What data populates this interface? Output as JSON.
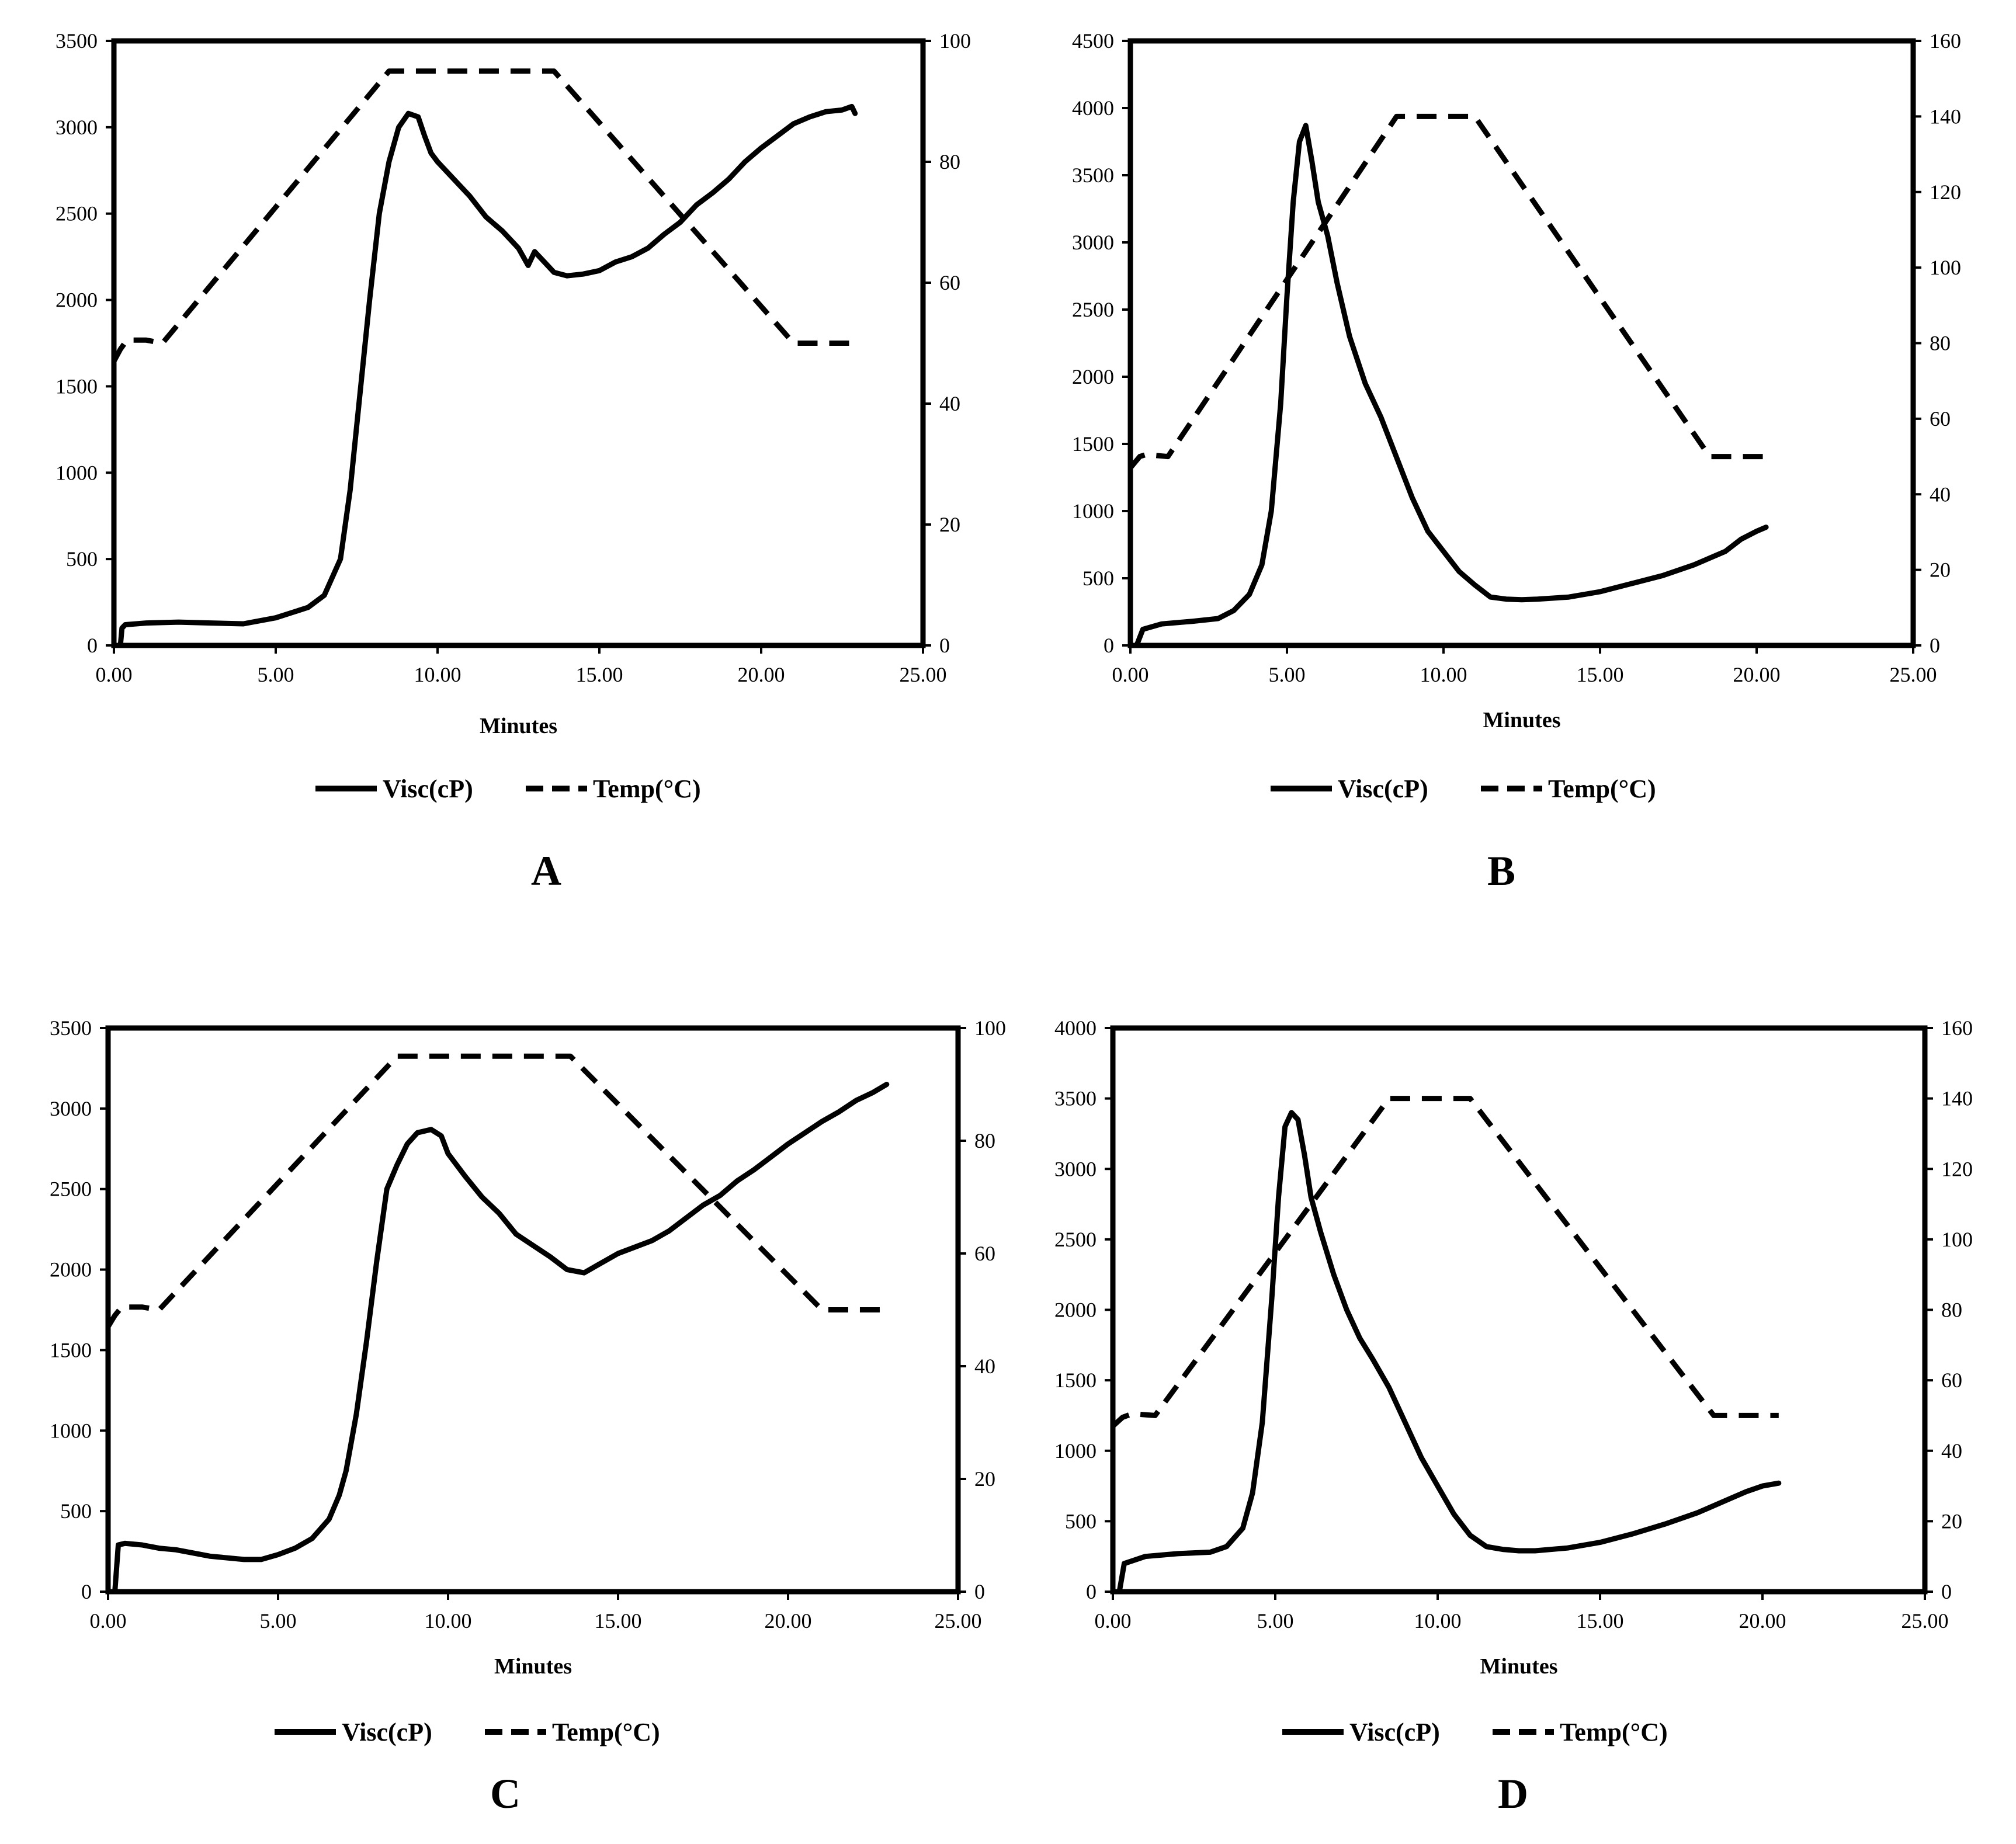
{
  "figure": {
    "colors": {
      "line": "#000000",
      "background": "#ffffff"
    }
  },
  "chart_data": [
    {
      "panel": "A",
      "type": "line",
      "xlabel": "Minutes",
      "xlim": [
        0,
        25
      ],
      "xticks": [
        "0.00",
        "5.00",
        "10.00",
        "15.00",
        "20.00",
        "25.00"
      ],
      "ylim_left": [
        0,
        3500
      ],
      "yticks_left": [
        "0",
        "500",
        "1000",
        "1500",
        "2000",
        "2500",
        "3000",
        "3500"
      ],
      "ylim_right": [
        0,
        100
      ],
      "yticks_right": [
        "0",
        "20",
        "40",
        "60",
        "80",
        "100"
      ],
      "legend": [
        "Visc(cP)",
        "Temp(°C)"
      ],
      "series": [
        {
          "name": "Visc(cP)",
          "axis": "left",
          "style": "solid",
          "x": [
            0.0,
            0.2,
            0.25,
            0.35,
            1.0,
            2.0,
            3.0,
            4.0,
            5.0,
            6.0,
            6.5,
            7.0,
            7.3,
            7.6,
            7.9,
            8.2,
            8.5,
            8.8,
            9.1,
            9.4,
            9.6,
            9.8,
            10.0,
            10.5,
            11.0,
            11.5,
            12.0,
            12.5,
            12.8,
            13.0,
            13.3,
            13.6,
            14.0,
            14.5,
            15.0,
            15.5,
            16.0,
            16.5,
            17.0,
            17.5,
            18.0,
            18.5,
            19.0,
            19.5,
            20.0,
            20.5,
            21.0,
            21.5,
            22.0,
            22.5,
            22.8,
            22.9
          ],
          "y": [
            0,
            0,
            100,
            120,
            130,
            135,
            130,
            125,
            160,
            220,
            290,
            500,
            900,
            1450,
            2000,
            2500,
            2800,
            3000,
            3080,
            3060,
            2950,
            2850,
            2800,
            2700,
            2600,
            2480,
            2400,
            2300,
            2200,
            2280,
            2220,
            2160,
            2140,
            2150,
            2170,
            2220,
            2250,
            2300,
            2380,
            2450,
            2550,
            2620,
            2700,
            2800,
            2880,
            2950,
            3020,
            3060,
            3090,
            3100,
            3120,
            3080
          ]
        },
        {
          "name": "Temp(°C)",
          "axis": "right",
          "style": "dashed",
          "x": [
            0.0,
            0.2,
            0.4,
            1.0,
            1.5,
            8.5,
            13.6,
            21.0,
            22.9
          ],
          "y": [
            47,
            49,
            50.5,
            50.5,
            50,
            95,
            95,
            50,
            50
          ]
        }
      ]
    },
    {
      "panel": "B",
      "type": "line",
      "xlabel": "Minutes",
      "xlim": [
        0,
        25
      ],
      "xticks": [
        "0.00",
        "5.00",
        "10.00",
        "15.00",
        "20.00",
        "25.00"
      ],
      "ylim_left": [
        0,
        4500
      ],
      "yticks_left": [
        "0",
        "500",
        "1000",
        "1500",
        "2000",
        "2500",
        "3000",
        "3500",
        "4000",
        "4500"
      ],
      "ylim_right": [
        0,
        160
      ],
      "yticks_right": [
        "0",
        "20",
        "40",
        "60",
        "80",
        "100",
        "120",
        "140",
        "160"
      ],
      "legend": [
        "Visc(cP)",
        "Temp(°C)"
      ],
      "series": [
        {
          "name": "Visc(cP)",
          "axis": "left",
          "style": "solid",
          "x": [
            0.0,
            0.2,
            0.4,
            1.0,
            2.0,
            2.8,
            3.3,
            3.8,
            4.2,
            4.5,
            4.8,
            5.0,
            5.2,
            5.4,
            5.6,
            5.8,
            6.0,
            6.3,
            6.6,
            7.0,
            7.5,
            8.0,
            8.5,
            9.0,
            9.5,
            10.0,
            10.5,
            11.0,
            11.5,
            12.0,
            12.5,
            13.0,
            14.0,
            15.0,
            16.0,
            17.0,
            18.0,
            19.0,
            19.5,
            20.0,
            20.3
          ],
          "y": [
            0,
            0,
            120,
            160,
            180,
            200,
            260,
            380,
            600,
            1000,
            1800,
            2600,
            3300,
            3750,
            3870,
            3600,
            3300,
            3050,
            2700,
            2300,
            1950,
            1700,
            1400,
            1100,
            850,
            700,
            550,
            450,
            360,
            345,
            340,
            345,
            360,
            400,
            460,
            520,
            600,
            700,
            790,
            850,
            880
          ]
        },
        {
          "name": "Temp(°C)",
          "axis": "right",
          "style": "dashed",
          "x": [
            0.0,
            0.3,
            0.5,
            1.2,
            8.5,
            11.0,
            18.5,
            20.3
          ],
          "y": [
            47,
            50,
            50.5,
            50,
            140,
            140,
            50,
            50
          ]
        }
      ]
    },
    {
      "panel": "C",
      "type": "line",
      "xlabel": "Minutes",
      "xlim": [
        0,
        25
      ],
      "xticks": [
        "0.00",
        "5.00",
        "10.00",
        "15.00",
        "20.00",
        "25.00"
      ],
      "ylim_left": [
        0,
        3500
      ],
      "yticks_left": [
        "0",
        "500",
        "1000",
        "1500",
        "2000",
        "2500",
        "3000",
        "3500"
      ],
      "ylim_right": [
        0,
        100
      ],
      "yticks_right": [
        "0",
        "20",
        "40",
        "60",
        "80",
        "100"
      ],
      "legend": [
        "Visc(cP)",
        "Temp(°C)"
      ],
      "series": [
        {
          "name": "Visc(cP)",
          "axis": "left",
          "style": "solid",
          "x": [
            0.0,
            0.2,
            0.3,
            0.5,
            1.0,
            1.5,
            2.0,
            3.0,
            4.0,
            4.5,
            5.0,
            5.5,
            6.0,
            6.5,
            6.8,
            7.0,
            7.3,
            7.6,
            7.9,
            8.2,
            8.5,
            8.8,
            9.1,
            9.5,
            9.8,
            10.0,
            10.5,
            11.0,
            11.5,
            12.0,
            12.5,
            13.0,
            13.5,
            14.0,
            14.5,
            15.0,
            15.5,
            16.0,
            16.5,
            17.0,
            17.5,
            18.0,
            18.5,
            19.0,
            19.5,
            20.0,
            20.5,
            21.0,
            21.5,
            22.0,
            22.5,
            22.9
          ],
          "y": [
            0,
            0,
            290,
            300,
            290,
            270,
            260,
            220,
            200,
            200,
            230,
            270,
            330,
            450,
            600,
            750,
            1100,
            1550,
            2050,
            2500,
            2650,
            2780,
            2850,
            2870,
            2830,
            2720,
            2580,
            2450,
            2350,
            2220,
            2150,
            2080,
            2000,
            1980,
            2040,
            2100,
            2140,
            2180,
            2240,
            2320,
            2400,
            2460,
            2550,
            2620,
            2700,
            2780,
            2850,
            2920,
            2980,
            3050,
            3100,
            3150
          ]
        },
        {
          "name": "Temp(°C)",
          "axis": "right",
          "style": "dashed",
          "x": [
            0.0,
            0.2,
            0.4,
            1.0,
            1.5,
            8.5,
            13.6,
            21.0,
            23.0
          ],
          "y": [
            47,
            49,
            50.5,
            50.5,
            50,
            95,
            95,
            50,
            50
          ]
        }
      ]
    },
    {
      "panel": "D",
      "type": "line",
      "xlabel": "Minutes",
      "xlim": [
        0,
        25
      ],
      "xticks": [
        "0.00",
        "5.00",
        "10.00",
        "15.00",
        "20.00",
        "25.00"
      ],
      "ylim_left": [
        0,
        4000
      ],
      "yticks_left": [
        "0",
        "500",
        "1000",
        "1500",
        "2000",
        "2500",
        "3000",
        "3500",
        "4000"
      ],
      "ylim_right": [
        0,
        160
      ],
      "yticks_right": [
        "0",
        "20",
        "40",
        "60",
        "80",
        "100",
        "120",
        "140",
        "160"
      ],
      "legend": [
        "Visc(cP)",
        "Temp(°C)"
      ],
      "series": [
        {
          "name": "Visc(cP)",
          "axis": "left",
          "style": "solid",
          "x": [
            0.0,
            0.2,
            0.35,
            1.0,
            2.0,
            3.0,
            3.5,
            4.0,
            4.3,
            4.6,
            4.9,
            5.1,
            5.3,
            5.5,
            5.7,
            5.9,
            6.1,
            6.4,
            6.8,
            7.2,
            7.6,
            8.0,
            8.5,
            9.0,
            9.5,
            10.0,
            10.5,
            11.0,
            11.5,
            12.0,
            12.5,
            13.0,
            14.0,
            15.0,
            16.0,
            17.0,
            18.0,
            19.0,
            19.5,
            20.0,
            20.5
          ],
          "y": [
            0,
            0,
            200,
            250,
            270,
            280,
            320,
            450,
            700,
            1200,
            2100,
            2800,
            3300,
            3400,
            3350,
            3100,
            2800,
            2550,
            2250,
            2000,
            1800,
            1650,
            1450,
            1200,
            950,
            750,
            550,
            400,
            320,
            300,
            290,
            290,
            310,
            350,
            410,
            480,
            560,
            660,
            710,
            750,
            770
          ]
        },
        {
          "name": "Temp(°C)",
          "axis": "right",
          "style": "dashed",
          "x": [
            0.0,
            0.3,
            0.6,
            1.3,
            8.5,
            11.0,
            18.5,
            20.5
          ],
          "y": [
            47,
            49.5,
            50.5,
            50,
            140,
            140,
            50,
            50
          ]
        }
      ]
    }
  ]
}
